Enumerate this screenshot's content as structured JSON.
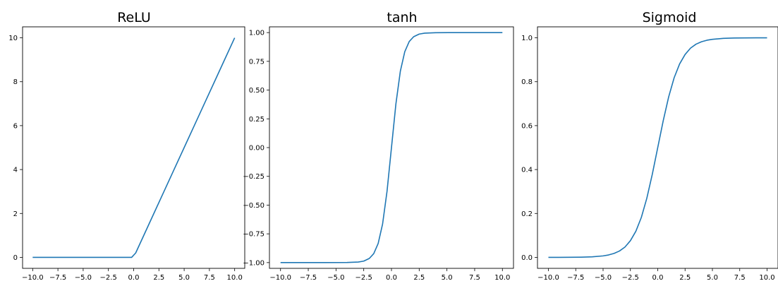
{
  "chart_data": [
    {
      "type": "line",
      "title": "ReLU",
      "xlim": [
        -10.0,
        10.0
      ],
      "ylim": [
        -0.5,
        10.5
      ],
      "xticks": [
        -10.0,
        -7.5,
        -5.0,
        -2.5,
        0.0,
        2.5,
        5.0,
        7.5,
        10.0
      ],
      "xtick_labels": [
        "−10.0",
        "−7.5",
        "−5.0",
        "−2.5",
        "0.0",
        "2.5",
        "5.0",
        "7.5",
        "10.0"
      ],
      "yticks": [
        0,
        2,
        4,
        6,
        8,
        10
      ],
      "ytick_labels": [
        "0",
        "2",
        "4",
        "6",
        "8",
        "10"
      ],
      "grid": false,
      "color": "#1f77b4",
      "x": [
        -10.0,
        -9.0,
        -8.0,
        -7.0,
        -6.0,
        -5.0,
        -4.0,
        -3.0,
        -2.0,
        -1.0,
        -0.2,
        0.2,
        1.0,
        2.0,
        3.0,
        4.0,
        5.0,
        6.0,
        7.0,
        8.0,
        9.0,
        10.0
      ],
      "y": [
        0.0,
        0.0,
        0.0,
        0.0,
        0.0,
        0.0,
        0.0,
        0.0,
        0.0,
        0.0,
        0.0,
        0.2,
        1.0,
        2.0,
        3.0,
        4.0,
        5.0,
        6.0,
        7.0,
        8.0,
        9.0,
        10.0
      ]
    },
    {
      "type": "line",
      "title": "tanh",
      "xlim": [
        -10.0,
        10.0
      ],
      "ylim": [
        -1.05,
        1.05
      ],
      "xticks": [
        -10.0,
        -7.5,
        -5.0,
        -2.5,
        0.0,
        2.5,
        5.0,
        7.5,
        10.0
      ],
      "xtick_labels": [
        "−10.0",
        "−7.5",
        "−5.0",
        "−2.5",
        "0.0",
        "2.5",
        "5.0",
        "7.5",
        "10.0"
      ],
      "yticks": [
        -1.0,
        -0.75,
        -0.5,
        -0.25,
        0.0,
        0.25,
        0.5,
        0.75,
        1.0
      ],
      "ytick_labels": [
        "−1.00",
        "−0.75",
        "−0.50",
        "−0.25",
        "0.00",
        "0.25",
        "0.50",
        "0.75",
        "1.00"
      ],
      "grid": false,
      "color": "#1f77b4",
      "x": [
        -10.0,
        -8.0,
        -6.0,
        -4.0,
        -3.0,
        -2.5,
        -2.0,
        -1.6,
        -1.2,
        -0.8,
        -0.4,
        0.0,
        0.4,
        0.8,
        1.2,
        1.6,
        2.0,
        2.5,
        3.0,
        4.0,
        6.0,
        8.0,
        10.0
      ],
      "y": [
        -1.0,
        -1.0,
        -1.0,
        -0.999,
        -0.995,
        -0.987,
        -0.964,
        -0.922,
        -0.834,
        -0.664,
        -0.38,
        0.0,
        0.38,
        0.664,
        0.834,
        0.922,
        0.964,
        0.987,
        0.995,
        0.999,
        1.0,
        1.0,
        1.0
      ]
    },
    {
      "type": "line",
      "title": "Sigmoid",
      "xlim": [
        -10.0,
        10.0
      ],
      "ylim": [
        -0.05,
        1.05
      ],
      "xticks": [
        -10.0,
        -7.5,
        -5.0,
        -2.5,
        0.0,
        2.5,
        5.0,
        7.5,
        10.0
      ],
      "xtick_labels": [
        "−10.0",
        "−7.5",
        "−5.0",
        "−2.5",
        "0.0",
        "2.5",
        "5.0",
        "7.5",
        "10.0"
      ],
      "yticks": [
        0.0,
        0.2,
        0.4,
        0.6,
        0.8,
        1.0
      ],
      "ytick_labels": [
        "0.0",
        "0.2",
        "0.4",
        "0.6",
        "0.8",
        "1.0"
      ],
      "grid": false,
      "color": "#1f77b4",
      "x": [
        -10.0,
        -9.0,
        -8.0,
        -7.0,
        -6.0,
        -5.0,
        -4.5,
        -4.0,
        -3.5,
        -3.0,
        -2.5,
        -2.0,
        -1.5,
        -1.0,
        -0.5,
        0.0,
        0.5,
        1.0,
        1.5,
        2.0,
        2.5,
        3.0,
        3.5,
        4.0,
        4.5,
        5.0,
        6.0,
        7.0,
        8.0,
        9.0,
        10.0
      ],
      "y": [
        0.0,
        0.0001,
        0.0003,
        0.0009,
        0.0025,
        0.0067,
        0.011,
        0.018,
        0.029,
        0.047,
        0.076,
        0.119,
        0.182,
        0.269,
        0.378,
        0.5,
        0.622,
        0.731,
        0.818,
        0.881,
        0.924,
        0.953,
        0.971,
        0.982,
        0.989,
        0.993,
        0.9975,
        0.9991,
        0.9997,
        0.9999,
        1.0
      ]
    }
  ]
}
